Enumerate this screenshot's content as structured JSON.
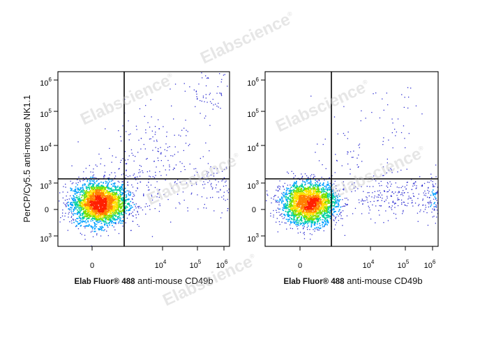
{
  "chart_data": [
    {
      "type": "scatter",
      "variant": "flow-cytometry-density-dotplot",
      "title": "",
      "xlabel_bold": "Elab Fluor® 488",
      "xlabel_rest": " anti-mouse CD49b",
      "ylabel": "PerCP/Cy5.5 anti-mouse NK1.1",
      "x_ticks": [
        {
          "base": "0",
          "exp": ""
        },
        {
          "base": "10",
          "exp": "4"
        },
        {
          "base": "10",
          "exp": "5"
        },
        {
          "base": "10",
          "exp": "6"
        }
      ],
      "y_ticks": [
        {
          "base": "10",
          "exp": "6"
        },
        {
          "base": "10",
          "exp": "5"
        },
        {
          "base": "10",
          "exp": "4"
        },
        {
          "base": "10",
          "exp": "3"
        },
        {
          "base": "0",
          "exp": ""
        },
        {
          "base": "10",
          "exp": "3"
        }
      ],
      "populations": [
        {
          "cx": 0.2,
          "cy": 0.2,
          "sx": 0.4,
          "sy": 0.33,
          "n": 2600,
          "role": "core"
        },
        {
          "cx": 1.8,
          "cy": 2.2,
          "sx": 0.6,
          "sy": 0.6,
          "n": 90,
          "role": "sparse"
        },
        {
          "cx": 1.4,
          "cy": 0.8,
          "sx": 0.9,
          "sy": 0.6,
          "n": 200,
          "role": "sparse"
        },
        {
          "cx": 3.6,
          "cy": 0.7,
          "sx": 0.4,
          "sy": 0.45,
          "n": 100,
          "role": "tail"
        },
        {
          "cx": 4.55,
          "cy": 4.05,
          "sx": 0.2,
          "sy": 0.2,
          "n": 170,
          "role": "nk-cluster"
        },
        {
          "cx": 3.5,
          "cy": 3.6,
          "sx": 0.55,
          "sy": 0.4,
          "n": 80,
          "role": "sparse"
        }
      ]
    },
    {
      "type": "scatter",
      "variant": "flow-cytometry-density-dotplot",
      "title": "",
      "xlabel_bold": "Elab Fluor® 488",
      "xlabel_rest": " anti-mouse CD49b",
      "ylabel": "",
      "x_ticks": [
        {
          "base": "0",
          "exp": ""
        },
        {
          "base": "10",
          "exp": "4"
        },
        {
          "base": "10",
          "exp": "5"
        },
        {
          "base": "10",
          "exp": "6"
        }
      ],
      "y_ticks": [
        {
          "base": "10",
          "exp": "6"
        },
        {
          "base": "10",
          "exp": "5"
        },
        {
          "base": "10",
          "exp": "4"
        },
        {
          "base": "10",
          "exp": "3"
        },
        {
          "base": "0",
          "exp": ""
        },
        {
          "base": "10",
          "exp": "3"
        }
      ],
      "populations": [
        {
          "cx": 0.25,
          "cy": 0.2,
          "sx": 0.4,
          "sy": 0.33,
          "n": 2400,
          "role": "core"
        },
        {
          "cx": 1.6,
          "cy": 1.8,
          "sx": 0.55,
          "sy": 0.55,
          "n": 60,
          "role": "sparse"
        },
        {
          "cx": 2.7,
          "cy": 0.45,
          "sx": 0.8,
          "sy": 0.35,
          "n": 250,
          "role": "tail"
        },
        {
          "cx": 4.05,
          "cy": 0.35,
          "sx": 0.3,
          "sy": 0.3,
          "n": 230,
          "role": "cd49b-cluster"
        },
        {
          "cx": 2.6,
          "cy": 3.3,
          "sx": 0.4,
          "sy": 0.5,
          "n": 25,
          "role": "sparse"
        }
      ]
    }
  ],
  "watermark": {
    "text": "Elabscience",
    "mark": "®"
  },
  "colors": {
    "sparse": "#2b2bd0",
    "density_scale": [
      "#1a1ad8",
      "#00a0ff",
      "#00d0a0",
      "#7ae000",
      "#ffe000",
      "#ff8000",
      "#ff2000"
    ]
  }
}
